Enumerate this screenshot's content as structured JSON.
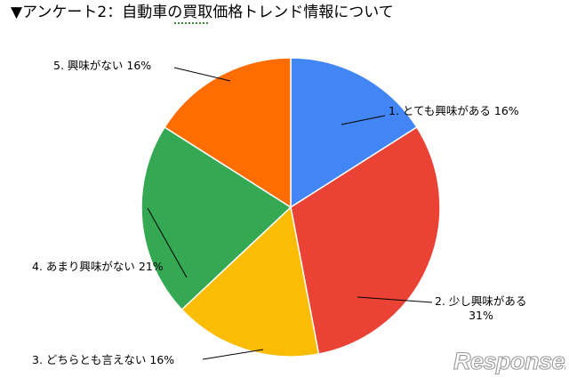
{
  "title": "▼アンケート2：自動車の買取価格トレンド情報について",
  "watermark": "Response.",
  "colors": {
    "slice_1": "#4285F4",
    "slice_2": "#EA4335",
    "slice_3": "#FBBC04",
    "slice_4": "#34A853",
    "slice_5": "#FF6D01"
  },
  "chart_data": {
    "type": "pie",
    "start": "12 o'clock, clockwise",
    "slices": [
      {
        "label_lines": [
          "1. とても興味がある 16%"
        ],
        "value": 16,
        "color": "#4285F4"
      },
      {
        "label_lines": [
          "2. 少し興味がある",
          "31%"
        ],
        "value": 31,
        "color": "#EA4335"
      },
      {
        "label_lines": [
          "3. どちらとも言えない 16%"
        ],
        "value": 16,
        "color": "#FBBC04"
      },
      {
        "label_lines": [
          "4. あまり興味がない 21%"
        ],
        "value": 21,
        "color": "#34A853"
      },
      {
        "label_lines": [
          "5. 興味がない 16%"
        ],
        "value": 16,
        "color": "#FF6D01"
      }
    ]
  }
}
